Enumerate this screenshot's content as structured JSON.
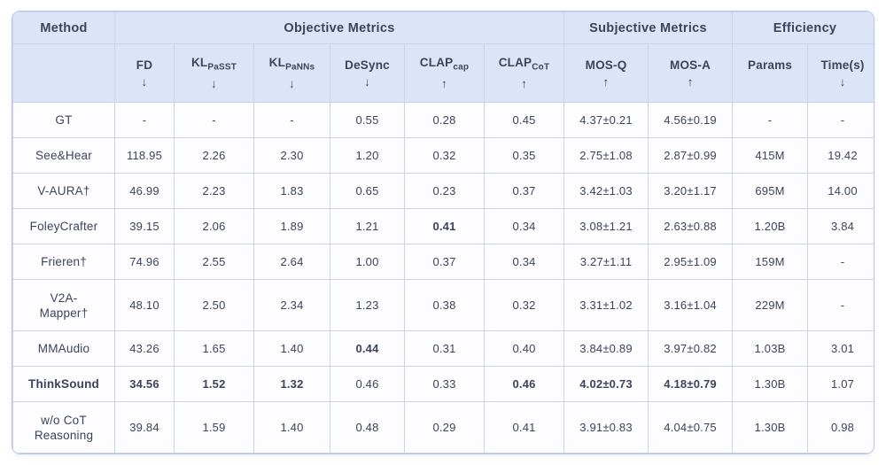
{
  "table": {
    "group_headers": [
      {
        "label": "Method",
        "colspan": 1
      },
      {
        "label": "Objective Metrics",
        "colspan": 6
      },
      {
        "label": "Subjective Metrics",
        "colspan": 2
      },
      {
        "label": "Efficiency",
        "colspan": 2
      }
    ],
    "columns": [
      {
        "name": "FD",
        "sub": "",
        "arrow": "↓"
      },
      {
        "name": "KL",
        "sub": "PaSST",
        "arrow": "↓"
      },
      {
        "name": "KL",
        "sub": "PaNNs",
        "arrow": "↓"
      },
      {
        "name": "DeSync",
        "sub": "",
        "arrow": "↓"
      },
      {
        "name": "CLAP",
        "sub": "cap",
        "arrow": "↑"
      },
      {
        "name": "CLAP",
        "sub": "CoT",
        "arrow": "↑"
      },
      {
        "name": "MOS-Q",
        "sub": "",
        "arrow": "↑"
      },
      {
        "name": "MOS-A",
        "sub": "",
        "arrow": "↑"
      },
      {
        "name": "Params",
        "sub": "",
        "arrow": ""
      },
      {
        "name": "Time(s)",
        "sub": "",
        "arrow": "↓"
      }
    ],
    "rows": [
      {
        "method": "GT",
        "bold_method": false,
        "values": [
          "-",
          "-",
          "-",
          "0.55",
          "0.28",
          "0.45",
          "4.37±0.21",
          "4.56±0.19",
          "-",
          "-"
        ],
        "bold": []
      },
      {
        "method": "See&Hear",
        "bold_method": false,
        "values": [
          "118.95",
          "2.26",
          "2.30",
          "1.20",
          "0.32",
          "0.35",
          "2.75±1.08",
          "2.87±0.99",
          "415M",
          "19.42"
        ],
        "bold": []
      },
      {
        "method": "V-AURA†",
        "bold_method": false,
        "values": [
          "46.99",
          "2.23",
          "1.83",
          "0.65",
          "0.23",
          "0.37",
          "3.42±1.03",
          "3.20±1.17",
          "695M",
          "14.00"
        ],
        "bold": []
      },
      {
        "method": "FoleyCrafter",
        "bold_method": false,
        "values": [
          "39.15",
          "2.06",
          "1.89",
          "1.21",
          "0.41",
          "0.34",
          "3.08±1.21",
          "2.63±0.88",
          "1.20B",
          "3.84"
        ],
        "bold": [
          4
        ]
      },
      {
        "method": "Frieren†",
        "bold_method": false,
        "values": [
          "74.96",
          "2.55",
          "2.64",
          "1.00",
          "0.37",
          "0.34",
          "3.27±1.11",
          "2.95±1.09",
          "159M",
          "-"
        ],
        "bold": []
      },
      {
        "method": "V2A-\nMapper†",
        "bold_method": false,
        "values": [
          "48.10",
          "2.50",
          "2.34",
          "1.23",
          "0.38",
          "0.32",
          "3.31±1.02",
          "3.16±1.04",
          "229M",
          "-"
        ],
        "bold": []
      },
      {
        "method": "MMAudio",
        "bold_method": false,
        "values": [
          "43.26",
          "1.65",
          "1.40",
          "0.44",
          "0.31",
          "0.40",
          "3.84±0.89",
          "3.97±0.82",
          "1.03B",
          "3.01"
        ],
        "bold": [
          3
        ]
      },
      {
        "method": "ThinkSound",
        "bold_method": true,
        "values": [
          "34.56",
          "1.52",
          "1.32",
          "0.46",
          "0.33",
          "0.46",
          "4.02±0.73",
          "4.18±0.79",
          "1.30B",
          "1.07"
        ],
        "bold": [
          0,
          1,
          2,
          5,
          6,
          7
        ]
      },
      {
        "method": "w/o CoT\nReasoning",
        "bold_method": false,
        "values": [
          "39.84",
          "1.59",
          "1.40",
          "0.48",
          "0.29",
          "0.41",
          "3.91±0.83",
          "4.04±0.75",
          "1.30B",
          "0.98"
        ],
        "bold": []
      }
    ]
  },
  "colors": {
    "header_bg": "#dce4f8",
    "border": "#c9d3ee",
    "border_strong": "#b9c6ea",
    "text": "#3c445c"
  }
}
